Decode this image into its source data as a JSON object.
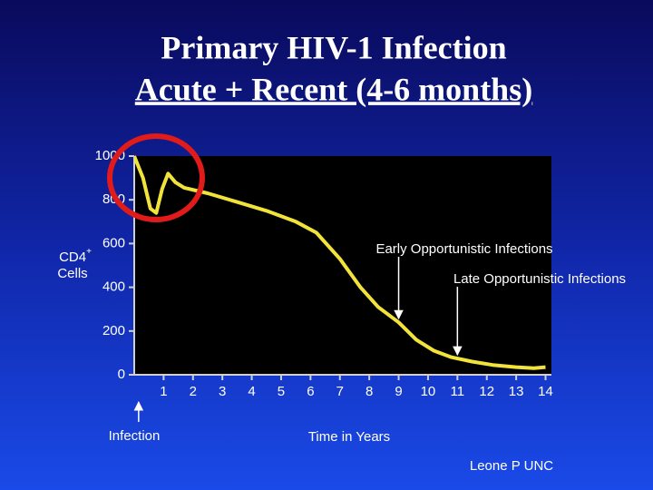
{
  "chart_data": {
    "type": "line",
    "title": "Primary HIV-1 Infection",
    "subtitle": "Acute + Recent (4-6 months)",
    "y_label": {
      "main": "CD4",
      "sup": "+",
      "line2": "Cells"
    },
    "x_label": "Time in Years",
    "source": "Leone P UNC",
    "xlim": [
      0,
      14.2
    ],
    "ylim": [
      0,
      1000
    ],
    "xticks": [
      1,
      2,
      3,
      4,
      5,
      6,
      7,
      8,
      9,
      10,
      11,
      12,
      13,
      14
    ],
    "yticks": [
      0,
      200,
      400,
      600,
      800,
      1000
    ],
    "grid": false,
    "x": [
      0,
      0.3,
      0.55,
      0.75,
      0.95,
      1.15,
      1.4,
      1.7,
      2.5,
      3.5,
      4.5,
      5.5,
      6.2,
      7,
      7.7,
      8.3,
      9,
      9.6,
      10.2,
      10.8,
      11.5,
      12.2,
      13,
      13.6,
      14
    ],
    "series": [
      {
        "color": "#f2e33a",
        "values": [
          1000,
          900,
          760,
          740,
          850,
          920,
          880,
          855,
          830,
          790,
          750,
          700,
          650,
          530,
          400,
          310,
          240,
          160,
          110,
          80,
          60,
          45,
          35,
          30,
          35
        ]
      }
    ],
    "annotations": [
      {
        "text": "Early Opportunistic Infections",
        "x": 9
      },
      {
        "text": "Late Opportunistic Infections",
        "x": 11
      },
      {
        "text": "Infection",
        "x": 0.15
      }
    ]
  }
}
